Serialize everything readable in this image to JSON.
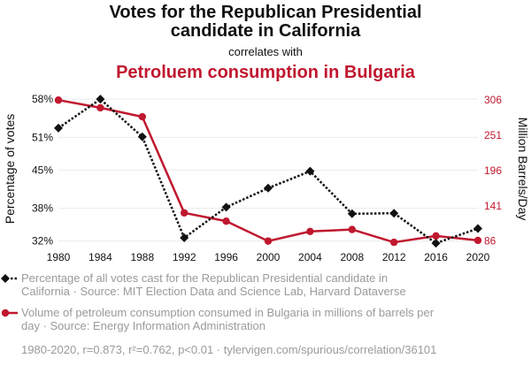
{
  "chart_data": {
    "type": "line",
    "title_line1": "Votes for the Republican Presidential",
    "title_line2": "candidate in California",
    "subtitle": "correlates with",
    "title2": "Petroluem consumption in Bulgaria",
    "x": [
      1980,
      1984,
      1988,
      1992,
      1996,
      2000,
      2004,
      2008,
      2012,
      2016,
      2020
    ],
    "xticks": [
      "1980",
      "1984",
      "1988",
      "1992",
      "1996",
      "2000",
      "2004",
      "2008",
      "2012",
      "2016",
      "2020"
    ],
    "ylabel_left": "Percentage of votes",
    "ylabel_right": "Million Barrels/Day",
    "ylim_left": [
      31.3,
      59.0
    ],
    "ylim_right": [
      80,
      316
    ],
    "yticks_left": [
      {
        "value": 32,
        "label": "32%"
      },
      {
        "value": 38,
        "label": "38%"
      },
      {
        "value": 45,
        "label": "45%"
      },
      {
        "value": 51,
        "label": "51%"
      },
      {
        "value": 58,
        "label": "58%"
      }
    ],
    "yticks_right": [
      {
        "value": 86,
        "label": "86"
      },
      {
        "value": 141,
        "label": "141"
      },
      {
        "value": 196,
        "label": "196"
      },
      {
        "value": 251,
        "label": "251"
      },
      {
        "value": 306,
        "label": "306"
      }
    ],
    "grid": true,
    "series": [
      {
        "values": [
          52.7,
          58.0,
          51.1,
          32.6,
          38.2,
          41.7,
          44.8,
          37.0,
          37.1,
          31.6,
          34.3
        ],
        "axis": "left",
        "color": "#111111",
        "style": "dotted",
        "marker": "diamond",
        "legend_line1": "Percentage of all votes cast for the Republican Presidential candidate in",
        "legend_line2": "California · Source: MIT Election Data and Science Lab, Harvard Dataverse"
      },
      {
        "values": [
          306,
          294,
          280,
          130,
          117,
          86,
          101,
          104,
          84,
          94,
          87
        ],
        "axis": "right",
        "color": "#c0182f",
        "style": "solid",
        "marker": "circle",
        "legend_line1": "Volume of petroleum consumption consumed in Bulgaria in millions of barrels per",
        "legend_line2": "day · Source: Energy Information Administration"
      }
    ],
    "footer": "1980-2020, r=0.873, r²=0.762, p<0.01 · tylervigen.com/spurious/correlation/36101"
  }
}
